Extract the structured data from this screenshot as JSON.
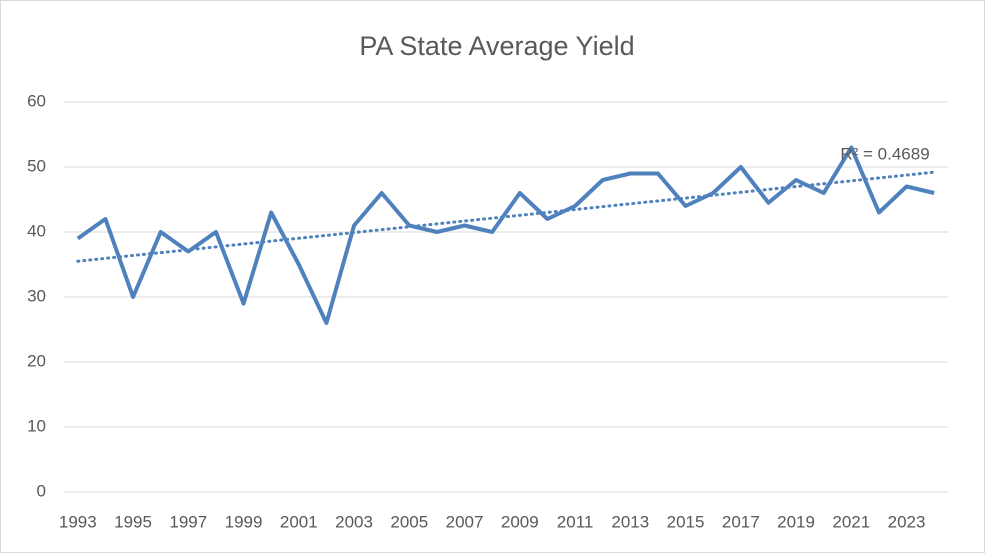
{
  "chart_data": {
    "type": "line",
    "title": "PA State Average Yield",
    "categories": [
      "1993",
      null,
      "1995",
      null,
      "1997",
      null,
      "1999",
      null,
      "2001",
      null,
      "2003",
      null,
      "2005",
      null,
      "2007",
      null,
      "2009",
      null,
      "2011",
      null,
      "2013",
      null,
      "2015",
      null,
      "2017",
      null,
      "2019",
      null,
      "2021",
      null,
      "2023",
      null
    ],
    "series": [
      {
        "color": "#4f81bd",
        "values": [
          39,
          42,
          30,
          40,
          37,
          40,
          29,
          43,
          35,
          26,
          41,
          46,
          41,
          40,
          41,
          40,
          46,
          42,
          44,
          48,
          49,
          49,
          44,
          46,
          50,
          44.5,
          48,
          46,
          53,
          43,
          47,
          46
        ]
      }
    ],
    "trendline": {
      "label": "R² = 0.4689",
      "start": 35.5,
      "end": 49.2,
      "color": "#4f81bd"
    },
    "ylim": [
      0,
      60
    ],
    "yticks": [
      0,
      10,
      20,
      30,
      40,
      50,
      60
    ],
    "grid": true
  }
}
